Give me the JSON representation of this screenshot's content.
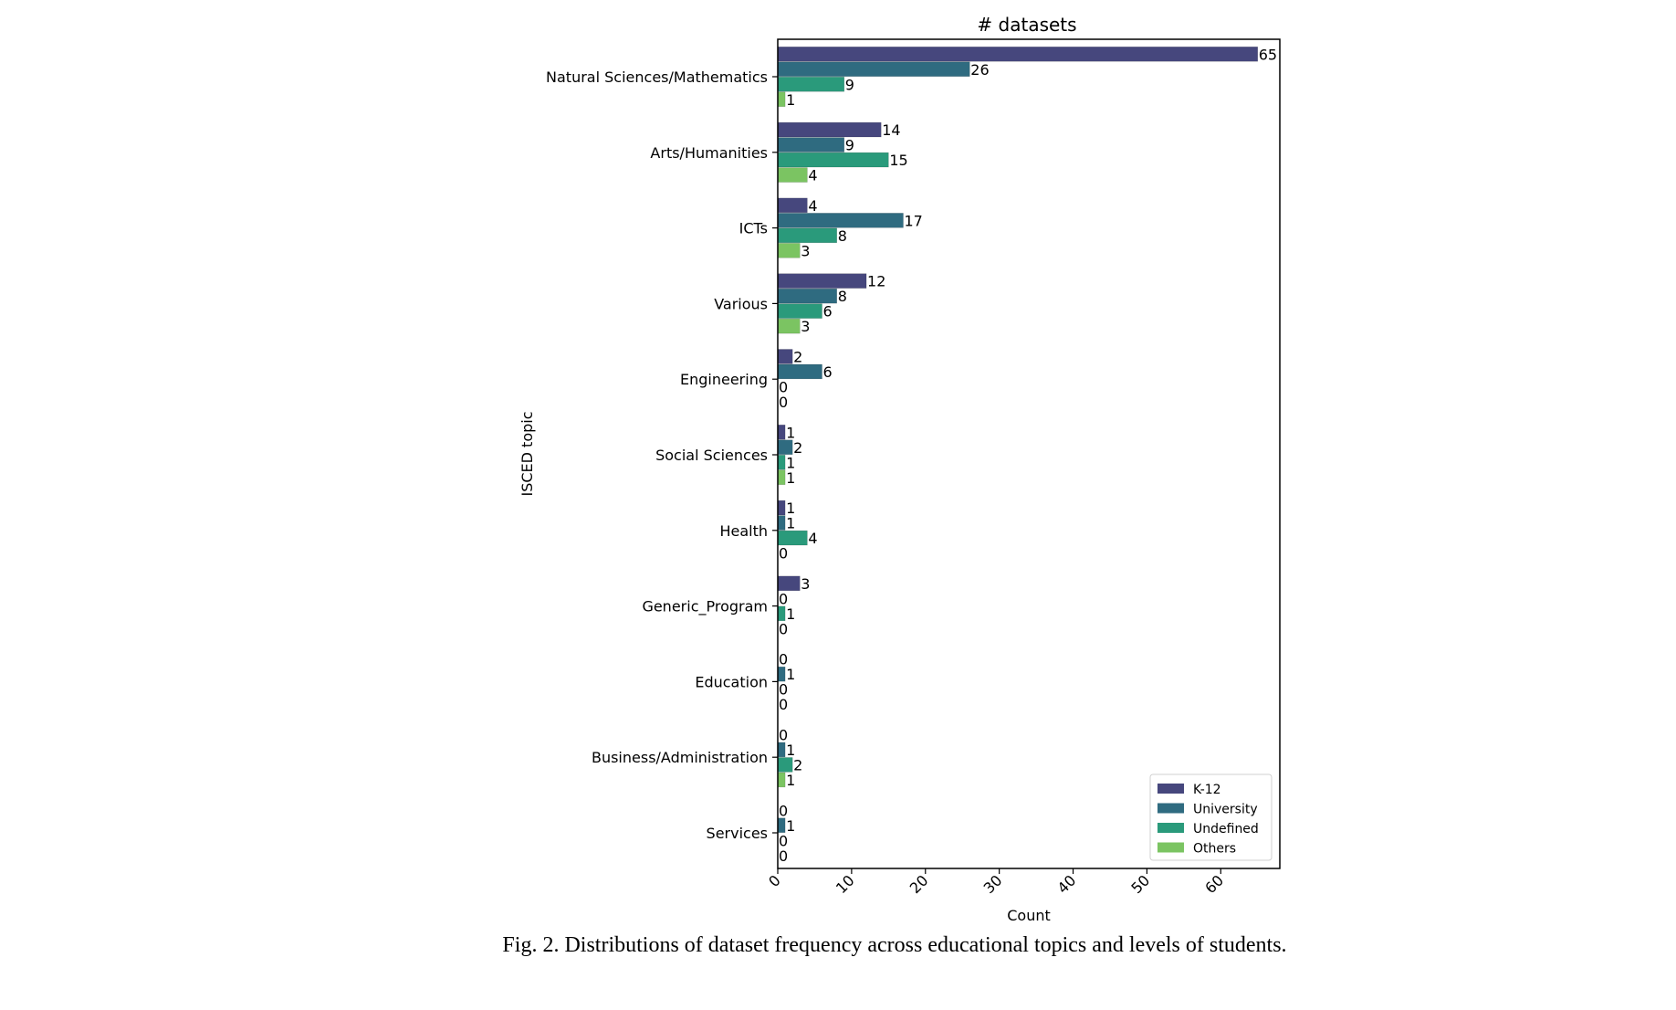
{
  "caption": "Fig. 2.  Distributions of dataset frequency across educational topics and levels of students.",
  "chart_data": {
    "type": "bar",
    "orientation": "horizontal",
    "title": "# datasets",
    "xlabel": "Count",
    "ylabel": "ISCED topic",
    "xlim": [
      0,
      68
    ],
    "xticks": [
      0,
      10,
      20,
      30,
      40,
      50,
      60
    ],
    "grid": false,
    "legend_position": "bottom-right",
    "categories": [
      "Natural Sciences/Mathematics",
      "Arts/Humanities",
      "ICTs",
      "Various",
      "Engineering",
      "Social Sciences",
      "Health",
      "Generic_Program",
      "Education",
      "Business/Administration",
      "Services"
    ],
    "series": [
      {
        "name": "K-12",
        "color": "#46477d",
        "values": [
          65,
          14,
          4,
          12,
          2,
          1,
          1,
          3,
          0,
          0,
          0
        ]
      },
      {
        "name": "University",
        "color": "#2f6b80",
        "values": [
          26,
          9,
          17,
          8,
          6,
          2,
          1,
          0,
          1,
          1,
          1
        ]
      },
      {
        "name": "Undefined",
        "color": "#2a9a7b",
        "values": [
          9,
          15,
          8,
          6,
          0,
          1,
          4,
          1,
          0,
          2,
          0
        ]
      },
      {
        "name": "Others",
        "color": "#7bc462",
        "values": [
          1,
          4,
          3,
          3,
          0,
          1,
          0,
          0,
          0,
          1,
          0
        ]
      }
    ]
  }
}
